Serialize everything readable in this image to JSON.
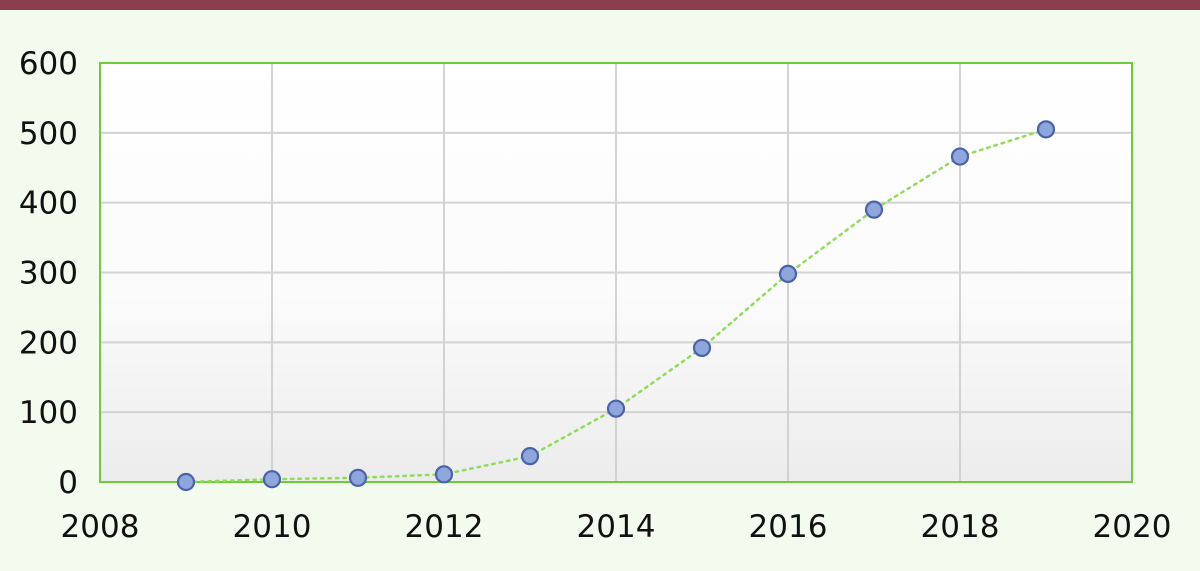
{
  "chart_data": {
    "type": "scatter",
    "connected": true,
    "line_style": "dotted",
    "title": "",
    "xlabel": "",
    "ylabel": "",
    "xlim": [
      2008,
      2020
    ],
    "ylim": [
      0,
      600
    ],
    "xticks": [
      2008,
      2010,
      2012,
      2014,
      2016,
      2018,
      2020
    ],
    "yticks": [
      0,
      100,
      200,
      300,
      400,
      500,
      600
    ],
    "xtick_labels": [
      "2008",
      "2010",
      "2012",
      "2014",
      "2016",
      "2018",
      "2020"
    ],
    "ytick_labels": [
      "0",
      "100",
      "200",
      "300",
      "400",
      "500",
      "600"
    ],
    "grid": true,
    "legend": "none",
    "series": [
      {
        "x": [
          2009,
          2010,
          2011,
          2012,
          2013,
          2014,
          2015,
          2016,
          2017,
          2018,
          2019
        ],
        "y": [
          0,
          4,
          6,
          11,
          37,
          105,
          192,
          298,
          390,
          466,
          505
        ]
      }
    ],
    "colors": {
      "marker_fill": "#8ea6dc",
      "marker_stroke": "#4a63a8",
      "line": "#8fdc5a",
      "grid": "#d2d2d2",
      "frame": "#6fca3c",
      "background": "#f3fbef"
    }
  }
}
